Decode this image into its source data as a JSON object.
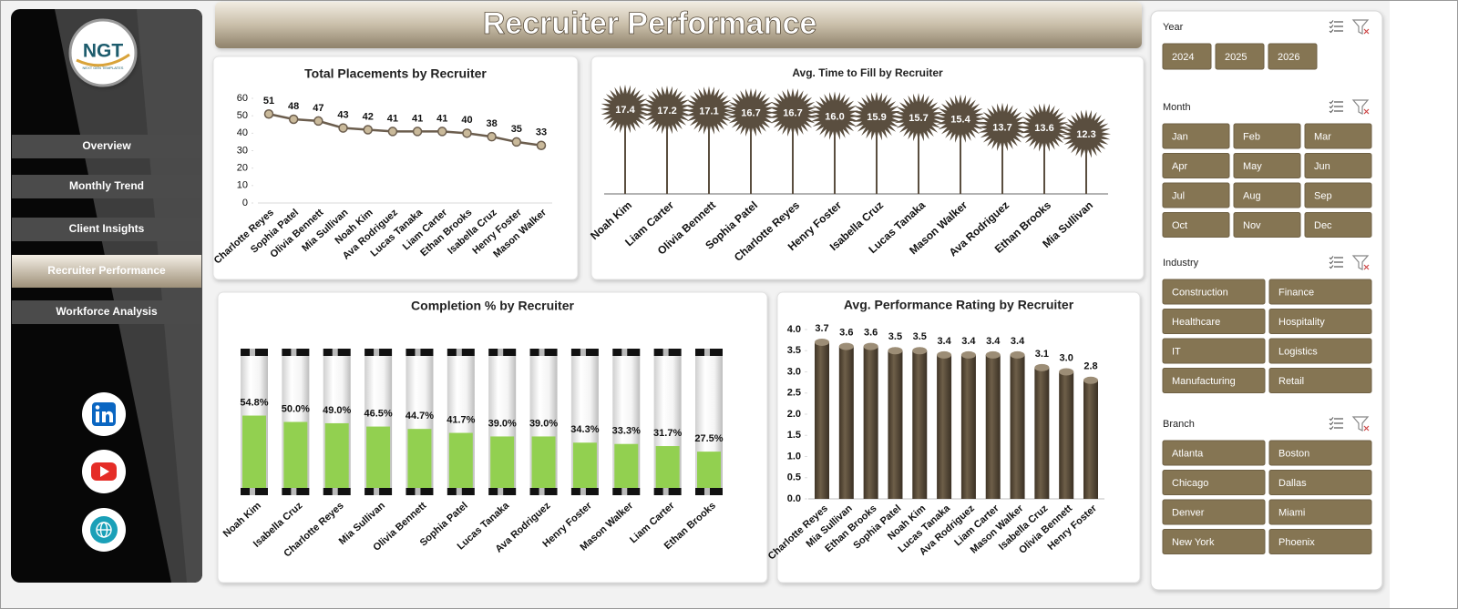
{
  "sidebar": {
    "logo": {
      "text": "NGT",
      "tagline": "NEXT GEN TEMPLATES"
    },
    "nav": [
      {
        "label": "Overview"
      },
      {
        "label": "Monthly Trend"
      },
      {
        "label": "Client Insights"
      },
      {
        "label": "Recruiter Performance",
        "active": true
      },
      {
        "label": "Workforce Analysis"
      }
    ]
  },
  "header": {
    "title": "Recruiter Performance"
  },
  "chart_data": [
    {
      "type": "line",
      "title": "Total Placements by Recruiter",
      "color": "#6b5d4d",
      "categories": [
        "Charlotte Reyes",
        "Sophia Patel",
        "Olivia Bennett",
        "Mia Sullivan",
        "Noah Kim",
        "Ava Rodriguez",
        "Lucas Tanaka",
        "Liam Carter",
        "Ethan Brooks",
        "Isabella Cruz",
        "Henry Foster",
        "Mason Walker"
      ],
      "values": [
        51,
        48,
        47,
        43,
        42,
        41,
        41,
        41,
        40,
        38,
        35,
        33
      ],
      "ylim": [
        0,
        60
      ],
      "yticks": [
        0,
        10,
        20,
        30,
        40,
        50,
        60
      ]
    },
    {
      "type": "lollipop",
      "title": "Avg. Time to Fill by Recruiter",
      "color": "#5a4e3f",
      "categories": [
        "Noah Kim",
        "Liam Carter",
        "Olivia Bennett",
        "Sophia Patel",
        "Charlotte Reyes",
        "Henry Foster",
        "Isabella Cruz",
        "Lucas Tanaka",
        "Mason Walker",
        "Ava Rodriguez",
        "Ethan Brooks",
        "Mia Sullivan"
      ],
      "values": [
        17.4,
        17.2,
        17.1,
        16.7,
        16.7,
        16.0,
        15.9,
        15.7,
        15.4,
        13.7,
        13.6,
        12.3
      ],
      "value_labels": [
        "17.4",
        "17.2",
        "17.1",
        "16.7",
        "16.7",
        "16.0",
        "15.9",
        "15.7",
        "15.4",
        "13.7",
        "13.6",
        "12.3"
      ]
    },
    {
      "type": "tube",
      "title": "Completion % by Recruiter",
      "color": "#92d050",
      "categories": [
        "Noah Kim",
        "Isabella Cruz",
        "Charlotte Reyes",
        "Mia Sullivan",
        "Olivia Bennett",
        "Sophia Patel",
        "Lucas Tanaka",
        "Ava Rodriguez",
        "Henry Foster",
        "Mason Walker",
        "Liam Carter",
        "Ethan Brooks"
      ],
      "values": [
        54.8,
        50.0,
        49.0,
        46.5,
        44.7,
        41.7,
        39.0,
        39.0,
        34.3,
        33.3,
        31.7,
        27.5
      ],
      "value_labels": [
        "54.8%",
        "50.0%",
        "49.0%",
        "46.5%",
        "44.7%",
        "41.7%",
        "39.0%",
        "39.0%",
        "34.3%",
        "33.3%",
        "31.7%",
        "27.5%"
      ]
    },
    {
      "type": "bar",
      "title": "Avg. Performance  Rating by Recruiter",
      "color": "#5a4c3a",
      "categories": [
        "Charlotte Reyes",
        "Mia Sullivan",
        "Ethan Brooks",
        "Sophia Patel",
        "Noah Kim",
        "Lucas Tanaka",
        "Ava Rodriguez",
        "Liam Carter",
        "Mason Walker",
        "Isabella Cruz",
        "Olivia Bennett",
        "Henry Foster"
      ],
      "values": [
        3.7,
        3.6,
        3.6,
        3.5,
        3.5,
        3.4,
        3.4,
        3.4,
        3.4,
        3.1,
        3.0,
        2.8
      ],
      "value_labels": [
        "3.7",
        "3.6",
        "3.6",
        "3.5",
        "3.5",
        "3.4",
        "3.4",
        "3.4",
        "3.4",
        "3.1",
        "3.0",
        "2.8"
      ],
      "ylim": [
        0,
        4
      ],
      "yticks": [
        {
          "value": 0,
          "label": "0.0"
        },
        0.5,
        {
          "value": 1,
          "label": "1.0"
        },
        1.5,
        {
          "value": 2,
          "label": "2.0"
        },
        2.5,
        {
          "value": 3,
          "label": "3.0"
        },
        3.5,
        {
          "value": 4,
          "label": "4.0"
        }
      ]
    }
  ],
  "slicers": [
    {
      "title": "Year",
      "items": [
        "2024",
        "2025",
        "2026"
      ]
    },
    {
      "title": "Month",
      "items": [
        "Jan",
        "Feb",
        "Mar",
        "Apr",
        "May",
        "Jun",
        "Jul",
        "Aug",
        "Sep",
        "Oct",
        "Nov",
        "Dec"
      ]
    },
    {
      "title": "Industry",
      "items": [
        "Construction",
        "Finance",
        "Healthcare",
        "Hospitality",
        "IT",
        "Logistics",
        "Manufacturing",
        "Retail"
      ]
    },
    {
      "title": "Branch",
      "items": [
        "Atlanta",
        "Boston",
        "Chicago",
        "Dallas",
        "Denver",
        "Miami",
        "New York",
        "Phoenix"
      ]
    }
  ]
}
